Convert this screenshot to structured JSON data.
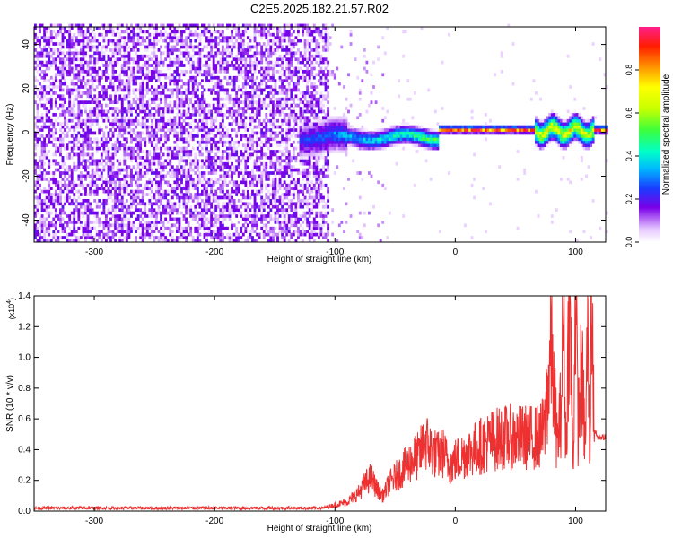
{
  "title": "C2E5.2025.182.21.57.R02",
  "chart_data": [
    {
      "type": "heatmap",
      "xlabel": "Height of straight line (km)",
      "ylabel": "Frequency (Hz)",
      "xlim": [
        -350,
        125
      ],
      "ylim": [
        -50,
        48
      ],
      "xticks": [
        -300,
        -200,
        -100,
        0,
        100
      ],
      "yticks": [
        -40,
        -20,
        0,
        20,
        40
      ],
      "colorbar": {
        "label": "Normalized spectral amplitude",
        "range": [
          0,
          1
        ],
        "ticks": [
          "0.0",
          "0.2",
          "0.4",
          "0.6",
          "0.8"
        ],
        "tick_values": [
          0,
          0.2,
          0.4,
          0.6,
          0.8
        ]
      },
      "regions": [
        {
          "description": "broadband noise, low amplitude",
          "x_range": [
            -350,
            -105
          ],
          "freq_range": [
            -50,
            48
          ],
          "amplitude": [
            0.05,
            0.35
          ]
        },
        {
          "description": "scattered weak noise",
          "x_range": [
            -105,
            -50
          ],
          "freq_range": [
            -50,
            48
          ],
          "amplitude": [
            0.0,
            0.15
          ]
        },
        {
          "description": "signal onset",
          "x_range": [
            -130,
            -15
          ],
          "center_freq": 0,
          "amplitude": [
            0.2,
            0.6
          ]
        },
        {
          "description": "steady tone near 0 Hz",
          "x_range": [
            -15,
            125
          ],
          "center_freq": 0,
          "amplitude": [
            0.4,
            1.0
          ]
        },
        {
          "description": "modulated signal",
          "x_range": [
            65,
            115
          ],
          "center_freq": 0,
          "amplitude": [
            0.3,
            0.9
          ]
        }
      ]
    },
    {
      "type": "line",
      "xlabel": "Height of straight line (km)",
      "ylabel": "SNR (10 * v/v)",
      "y_multiplier_label": "(x10",
      "y_multiplier_exp": "4",
      "y_multiplier_close": ")",
      "xlim": [
        -350,
        125
      ],
      "ylim": [
        0,
        1.4
      ],
      "xticks": [
        -300,
        -200,
        -100,
        0,
        100
      ],
      "yticks": [
        "0.0",
        "0.2",
        "0.4",
        "0.6",
        "0.8",
        "1.0",
        "1.2",
        "1.4"
      ],
      "ytick_values": [
        0,
        0.2,
        0.4,
        0.6,
        0.8,
        1.0,
        1.2,
        1.4
      ],
      "color": "#ee3030",
      "series": [
        {
          "x": [
            -350,
            -300,
            -250,
            -200,
            -150,
            -110,
            -100,
            -90,
            -80,
            -75,
            -70,
            -65,
            -60,
            -55,
            -50,
            -45,
            -40,
            -35,
            -30,
            -25,
            -20,
            -15,
            -10,
            -5,
            0,
            10,
            20,
            30,
            40,
            50,
            60,
            70,
            75,
            78,
            80,
            82,
            85,
            88,
            90,
            92,
            95,
            98,
            100,
            102,
            105,
            108,
            110,
            112,
            113,
            115,
            118,
            120,
            125
          ],
          "y": [
            0.02,
            0.02,
            0.02,
            0.02,
            0.02,
            0.02,
            0.04,
            0.06,
            0.12,
            0.18,
            0.22,
            0.14,
            0.1,
            0.18,
            0.22,
            0.26,
            0.3,
            0.34,
            0.36,
            0.46,
            0.4,
            0.36,
            0.38,
            0.3,
            0.33,
            0.38,
            0.42,
            0.46,
            0.48,
            0.48,
            0.48,
            0.48,
            0.55,
            0.7,
            0.9,
            0.6,
            0.35,
            0.55,
            1.05,
            0.3,
            1.2,
            0.2,
            1.22,
            0.45,
            0.75,
            0.35,
            0.95,
            0.2,
            1.4,
            0.55,
            0.48,
            0.48,
            0.48
          ]
        }
      ]
    }
  ]
}
